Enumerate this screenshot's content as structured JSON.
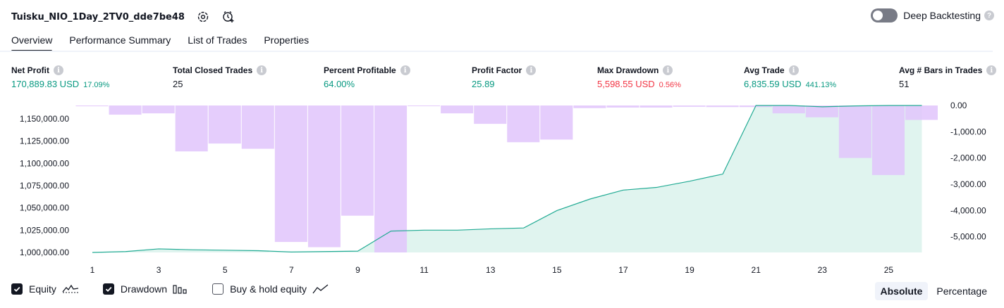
{
  "header": {
    "title": "Tuisku_NIO_1Day_2TV0_dde7be48",
    "deep_backtesting_label": "Deep Backtesting",
    "deep_backtesting_enabled": false
  },
  "tabs": [
    {
      "label": "Overview",
      "active": true
    },
    {
      "label": "Performance Summary",
      "active": false
    },
    {
      "label": "List of Trades",
      "active": false
    },
    {
      "label": "Properties",
      "active": false
    }
  ],
  "metrics": [
    {
      "label": "Net Profit",
      "value": "170,889.83 USD",
      "sub": "17.09%",
      "color": "#089981"
    },
    {
      "label": "Total Closed Trades",
      "value": "25",
      "sub": "",
      "color": "#131722"
    },
    {
      "label": "Percent Profitable",
      "value": "64.00%",
      "sub": "",
      "color": "#089981"
    },
    {
      "label": "Profit Factor",
      "value": "25.89",
      "sub": "",
      "color": "#089981"
    },
    {
      "label": "Max Drawdown",
      "value": "5,598.55 USD",
      "sub": "0.56%",
      "color": "#f23645"
    },
    {
      "label": "Avg Trade",
      "value": "6,835.59 USD",
      "sub": "441.13%",
      "color": "#089981"
    },
    {
      "label": "Avg # Bars in Trades",
      "value": "51",
      "sub": "",
      "color": "#131722"
    }
  ],
  "legend": {
    "equity_label": "Equity",
    "drawdown_label": "Drawdown",
    "buyhold_label": "Buy & hold equity",
    "equity_checked": true,
    "drawdown_checked": true,
    "buyhold_checked": false
  },
  "modes": {
    "absolute": "Absolute",
    "percentage": "Percentage",
    "active": "absolute"
  },
  "colors": {
    "equity_line": "#22ab94",
    "equity_fill": "#d5f0ea",
    "drawdown_bar": "#e1c4fb",
    "accent": "#131722"
  },
  "chart_data": {
    "type": "area",
    "x": [
      1,
      2,
      3,
      4,
      5,
      6,
      7,
      8,
      9,
      10,
      11,
      12,
      13,
      14,
      15,
      16,
      17,
      18,
      19,
      20,
      21,
      22,
      23,
      24,
      25,
      26
    ],
    "x_ticks": [
      "1",
      "3",
      "5",
      "7",
      "9",
      "11",
      "13",
      "15",
      "17",
      "19",
      "21",
      "23",
      "25"
    ],
    "left_ticks": [
      "1,150,000.00",
      "1,125,000.00",
      "1,100,000.00",
      "1,075,000.00",
      "1,050,000.00",
      "1,025,000.00",
      "1,000,000.00"
    ],
    "right_ticks": [
      "0.00",
      "-1,000.00",
      "-2,000.00",
      "-3,000.00",
      "-4,000.00",
      "-5,000.00"
    ],
    "series": [
      {
        "name": "Equity",
        "axis": "left",
        "values": [
          1000000,
          1001000,
          1004000,
          1003000,
          1002500,
          1002000,
          1000500,
          1001000,
          1001500,
          1024000,
          1025000,
          1025000,
          1026500,
          1027500,
          1047000,
          1060000,
          1070000,
          1073000,
          1080000,
          1088000,
          1165000,
          1165000,
          1163500,
          1164500,
          1165000,
          1165000
        ]
      },
      {
        "name": "Drawdown",
        "axis": "right",
        "values": [
          -30,
          -350,
          -300,
          -1750,
          -1450,
          -1650,
          -5200,
          -5400,
          -4200,
          -5600,
          0,
          -300,
          -700,
          -1400,
          -1300,
          -100,
          -80,
          -80,
          -50,
          -60,
          -60,
          -300,
          -450,
          -2000,
          -2650,
          -550
        ]
      }
    ],
    "ylim_left": [
      1000000,
      1165000
    ],
    "ylim_right": [
      -5600,
      0
    ]
  }
}
